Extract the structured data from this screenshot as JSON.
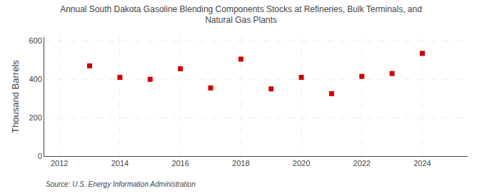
{
  "chart_data": {
    "type": "scatter",
    "title": "Annual South Dakota Gasoline Blending Components Stocks at Refineries, Bulk Terminals, and\nNatural Gas Plants",
    "ylabel": "Thousand Barrels",
    "annotations": [
      "Source: U.S. Energy Information Administration"
    ],
    "x": [
      2013,
      2014,
      2015,
      2016,
      2017,
      2018,
      2019,
      2020,
      2021,
      2022,
      2023,
      2024
    ],
    "values": [
      470,
      410,
      400,
      455,
      355,
      505,
      350,
      410,
      325,
      415,
      430,
      535
    ],
    "color": "#cc0000",
    "marker": "square",
    "xlim": [
      2011.5,
      2025.5
    ],
    "ylim": [
      0,
      620
    ],
    "xticks": [
      2012,
      2014,
      2016,
      2018,
      2020,
      2022,
      2024
    ],
    "yticks": [
      0,
      200,
      400,
      600
    ],
    "grid": true
  }
}
